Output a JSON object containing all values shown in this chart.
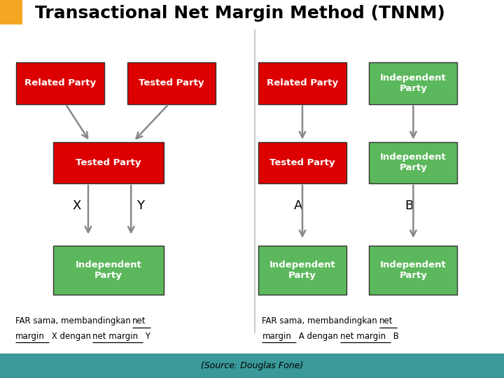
{
  "title": "Transactional Net Margin Method (TNNM)",
  "title_fontsize": 18,
  "title_fontweight": "bold",
  "bg_color": "#ffffff",
  "orange_color": "#F5A623",
  "red_color": "#DD0000",
  "green_color": "#5CB85C",
  "text_color_white": "#ffffff",
  "text_color_black": "#000000",
  "arrow_color": "#888888",
  "bottom_bar_color": "#3A9999",
  "source_text": "(Source: Douglas Fone)",
  "left_caption_line1_plain": "FAR sama, membandingkan ",
  "left_caption_line1_ul": "net",
  "left_caption_line2_ul1": "margin",
  "left_caption_line2_mid": " X dengan ",
  "left_caption_line2_ul2": "net margin",
  "left_caption_line2_end": " Y",
  "right_caption_line1_plain": "FAR sama, membandingkan ",
  "right_caption_line1_ul": "net",
  "right_caption_line2_ul1": "margin",
  "right_caption_line2_mid": " A dengan ",
  "right_caption_line2_ul2": "net margin",
  "right_caption_line2_end": " B"
}
